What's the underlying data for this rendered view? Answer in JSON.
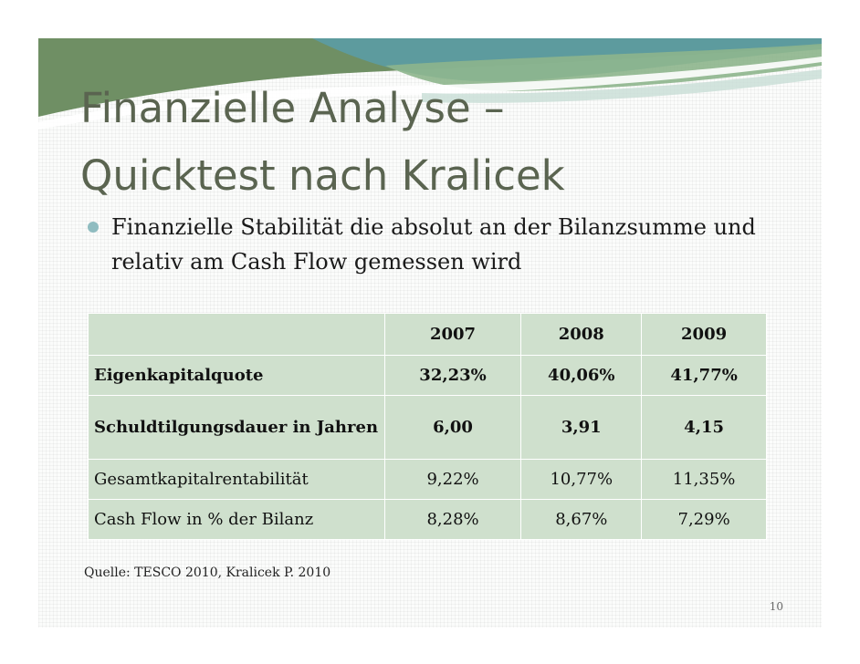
{
  "slide": {
    "title": "Finanzielle Analyse –\nQuicktest nach Kralicek",
    "bullet": "Finanzielle Stabilität die absolut an der Bilanzsumme und relativ am Cash Flow gemessen wird",
    "table": {
      "years": [
        "2007",
        "2008",
        "2009"
      ],
      "rows": [
        {
          "label": "Eigenkapitalquote",
          "values": [
            "32,23%",
            "40,06%",
            "41,77%"
          ]
        },
        {
          "label": "Schuldtilgungsdauer in Jahren",
          "values": [
            "6,00",
            "3,91",
            "4,15"
          ]
        },
        {
          "label": "Gesamtkapitalrentabilität",
          "values": [
            "9,22%",
            "10,77%",
            "11,35%"
          ]
        },
        {
          "label": "Cash Flow in % der Bilanz",
          "values": [
            "8,28%",
            "8,67%",
            "7,29%"
          ]
        }
      ]
    },
    "source": "Quelle: TESCO 2010, Kralicek P. 2010",
    "page_number": "10"
  },
  "colors": {
    "title": "#5a6450",
    "table_fill": "#cfe0cd",
    "bullet": "#8fbcc0",
    "wave_teal": "#5b9ea8",
    "wave_green": "#8db58c"
  }
}
